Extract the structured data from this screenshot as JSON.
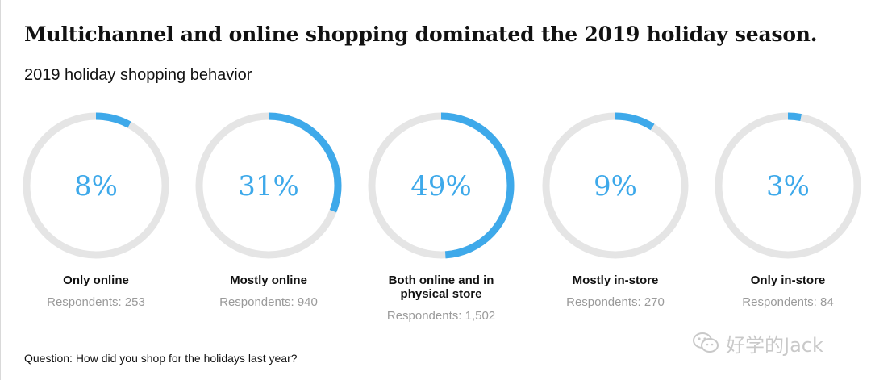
{
  "title": "Multichannel and online shopping dominated the 2019 holiday season.",
  "subtitle": "2019 holiday shopping behavior",
  "question": "Question: How did you shop for the holidays last year?",
  "watermark": "好学的Jack",
  "colors": {
    "accent": "#3ea9ea",
    "track": "#e5e5e5",
    "respondents": "#9a9a9a"
  },
  "chart_data": {
    "type": "pie",
    "style": "donut-rings",
    "title": "2019 holiday shopping behavior",
    "categories": [
      "Only online",
      "Mostly online",
      "Both online and in physical store",
      "Mostly in-store",
      "Only in-store"
    ],
    "values": [
      8,
      31,
      49,
      9,
      3
    ],
    "unit": "%",
    "value_labels": [
      "8%",
      "31%",
      "49%",
      "9%",
      "3%"
    ],
    "respondents": [
      "Respondents: 253",
      "Respondents: 940",
      "Respondents: 1,502",
      "Respondents: 270",
      "Respondents: 84"
    ]
  }
}
